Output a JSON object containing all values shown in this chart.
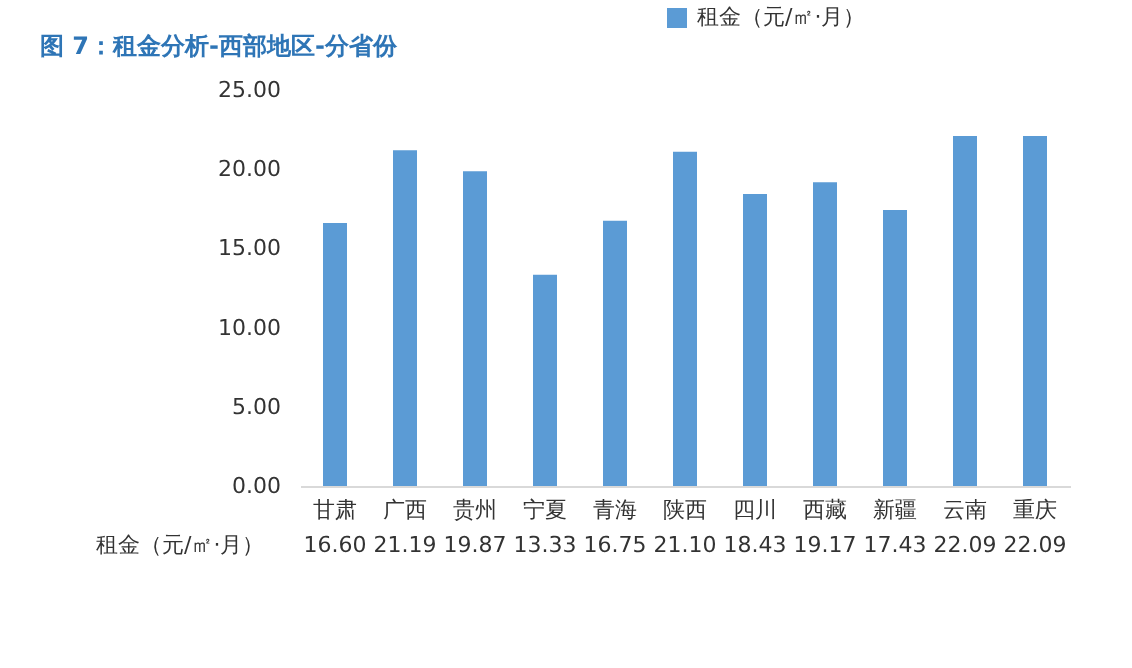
{
  "chart_data": {
    "type": "bar",
    "title": "图 7：租金分析-西部地区-分省份",
    "categories": [
      "甘肃",
      "广西",
      "贵州",
      "宁夏",
      "青海",
      "陕西",
      "四川",
      "西藏",
      "新疆",
      "云南",
      "重庆"
    ],
    "series": [
      {
        "name": "租金（元/㎡·月）",
        "color": "#5b9bd5",
        "values": [
          16.6,
          21.19,
          19.87,
          13.33,
          16.75,
          21.1,
          18.43,
          19.17,
          17.43,
          22.09,
          22.09
        ],
        "value_labels": [
          "16.60",
          "21.19",
          "19.87",
          "13.33",
          "16.75",
          "21.10",
          "18.43",
          "19.17",
          "17.43",
          "22.09",
          "22.09"
        ]
      }
    ],
    "ylim": [
      0,
      25
    ],
    "yticks": [
      {
        "value": 0,
        "label": "0.00"
      },
      {
        "value": 5,
        "label": "5.00"
      },
      {
        "value": 10,
        "label": "10.00"
      },
      {
        "value": 15,
        "label": "15.00"
      },
      {
        "value": 20,
        "label": "20.00"
      },
      {
        "value": 25,
        "label": "25.00"
      }
    ],
    "grid": false,
    "legend": "top"
  }
}
